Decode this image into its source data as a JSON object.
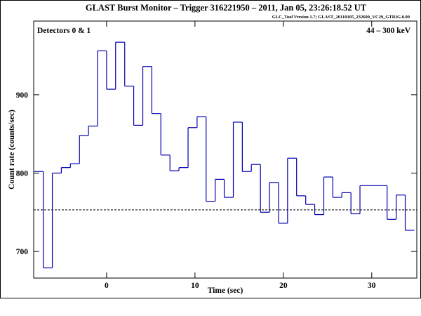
{
  "chart_data": {
    "type": "histogram",
    "title": "GLAST Burst Monitor  –  Trigger 316221950  –  2011, Jan 05, 23:26:18.52 UT",
    "subtitle": "GLC_Tool Version 1.7; GLAST_20110105_232600_VC29_GTRIG.0.00",
    "annotations": [
      "Detectors 0 & 1",
      "44 – 300 keV"
    ],
    "x_label": "Time (sec)",
    "y_label": "Count rate (counts/sec)",
    "bins": [
      -8.19,
      -7.17,
      -6.14,
      -5.12,
      -4.1,
      -3.07,
      -2.05,
      -1.02,
      0,
      1.02,
      2.05,
      3.07,
      4.1,
      5.12,
      6.14,
      7.17,
      8.19,
      9.22,
      10.24,
      11.26,
      12.29,
      13.31,
      14.34,
      15.36,
      16.38,
      17.41,
      18.43,
      19.46,
      20.48,
      21.5,
      22.53,
      23.55,
      24.58,
      25.6,
      26.62,
      27.65,
      28.67,
      31.74,
      32.77,
      33.79,
      34.82
    ],
    "values": [
      802,
      679,
      800,
      807,
      812,
      848,
      860,
      956,
      907,
      967,
      911,
      861,
      936,
      876,
      823,
      803,
      807,
      858,
      872,
      764,
      792,
      769,
      865,
      802,
      811,
      750,
      788,
      736,
      819,
      771,
      760,
      747,
      795,
      769,
      775,
      748,
      784,
      741,
      772,
      727
    ],
    "color": "#0000b0",
    "background_level": 753,
    "xlim": [
      -8.25,
      35.1
    ],
    "ylim": [
      666,
      994
    ],
    "xticks": [
      0,
      10,
      20,
      30
    ],
    "yticks": [
      700,
      800,
      900
    ]
  }
}
